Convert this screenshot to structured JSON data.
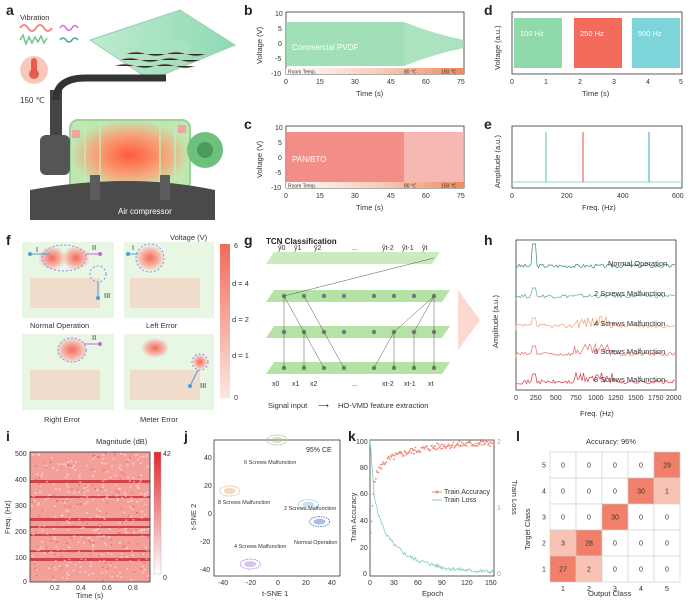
{
  "panels": {
    "a": "a",
    "b": "b",
    "c": "c",
    "d": "d",
    "e": "e",
    "f": "f",
    "g": "g",
    "h": "h",
    "i": "i",
    "j": "j",
    "k": "k",
    "l": "l"
  },
  "panel_a": {
    "vibration": "Vibration",
    "temp": "150 ℃",
    "compressor": "Air compressor"
  },
  "panel_b": {
    "ylabel": "Voltage (V)",
    "xlabel": "Time (s)",
    "series": "Commercial PVDF",
    "xticks": [
      "0",
      "15",
      "30",
      "45",
      "60",
      "75"
    ],
    "yticks": [
      "10",
      "5",
      "0",
      "-5",
      "-10"
    ],
    "bar": [
      "Room Temp.",
      "80 ℃",
      "150 ℃"
    ]
  },
  "panel_c": {
    "ylabel": "Voltage (V)",
    "xlabel": "Time (s)",
    "series": "PAN/BTO",
    "xticks": [
      "0",
      "15",
      "30",
      "45",
      "60",
      "75"
    ],
    "yticks": [
      "10",
      "5",
      "0",
      "-5",
      "-10"
    ],
    "bar": [
      "Room Temp.",
      "80 ℃",
      "150 ℃"
    ]
  },
  "panel_d": {
    "ylabel": "Voltage (a.u.)",
    "xlabel": "Time (s)",
    "blocks": [
      "100 Hz",
      "250 Hz",
      "500 Hz"
    ],
    "colors": [
      "#8fd9ab",
      "#f26b5b",
      "#7dd5da"
    ],
    "xticks": [
      "0",
      "1",
      "2",
      "3",
      "4",
      "5"
    ]
  },
  "panel_e": {
    "ylabel": "Amplitude (a.u.)",
    "xlabel": "Freq. (Hz)",
    "xticks": [
      "0",
      "200",
      "400",
      "600"
    ]
  },
  "panel_f": {
    "legend_title": "Voltage (V)",
    "max": "6",
    "min": "0",
    "captions": [
      "Normal Operation",
      "Left Error",
      "Right Error",
      "Meter Error"
    ],
    "markers": [
      "I",
      "II",
      "III"
    ]
  },
  "panel_g": {
    "title": "TCN Classification",
    "levels": [
      "d = 4",
      "d = 2",
      "d = 1"
    ],
    "outputs": [
      "ŷ0",
      "ŷ1",
      "ŷ2",
      "...",
      "ŷt-2",
      "ŷt-1",
      "ŷt"
    ],
    "inputs": [
      "x0",
      "x1",
      "x2",
      "...",
      "xt-2",
      "xt-1",
      "xt"
    ],
    "caption_left": "Signal input",
    "caption_right": "HO-VMD feature extraction"
  },
  "panel_h": {
    "ylabel": "Amplitude (a.u.)",
    "xlabel": "Freq. (Hz)",
    "xticks": [
      "0",
      "250",
      "500",
      "750",
      "1000",
      "1250",
      "1500",
      "1750",
      "2000"
    ],
    "series": [
      "Normal Operation",
      "2 Screws Malfunction",
      "4 Screws Malfunction",
      "6 Screws Malfunction",
      "8 Screws Malfunction"
    ],
    "colors": [
      "#3e8a5c",
      "#5cb07a",
      "#f2a07e",
      "#ea6f6f",
      "#d43c4c"
    ]
  },
  "panel_i": {
    "ylabel": "Freq. (Hz)",
    "xlabel": "Time (s)",
    "legend": "Magnitude (dB)",
    "max": "42",
    "min": "0",
    "xticks": [
      "0.2",
      "0.4",
      "0.6",
      "0.8"
    ],
    "yticks": [
      "500",
      "400",
      "300",
      "200",
      "100",
      "0"
    ]
  },
  "panel_j": {
    "ylabel": "t-SNE 2",
    "xlabel": "t-SNE 1",
    "ce": "95% CE",
    "xticks": [
      "-40",
      "-20",
      "0",
      "20",
      "40"
    ],
    "yticks": [
      "40",
      "20",
      "0",
      "-20",
      "-40"
    ],
    "clusters": [
      "6 Screws Malfunction",
      "8 Screws Malfunction",
      "2 Screws Malfunction",
      "Normal Operation",
      "4 Screws Malfunction"
    ]
  },
  "panel_k": {
    "ylabel": "Train Accuracy",
    "y2label": "Train Loss",
    "xlabel": "Epoch",
    "xticks": [
      "0",
      "30",
      "60",
      "90",
      "120",
      "150"
    ],
    "yticks": [
      "100",
      "80",
      "60",
      "40",
      "20",
      "0"
    ],
    "y2ticks": [
      "2",
      "1",
      "0"
    ],
    "legend": [
      "Train Accuracy",
      "Train Loss"
    ]
  },
  "panel_l": {
    "title": "Accuracy: 96%",
    "ylabel": "Target Class",
    "xlabel": "Output Class",
    "labels": [
      "1",
      "2",
      "3",
      "4",
      "5"
    ]
  },
  "chart_data": [
    {
      "type": "heatmap",
      "title": "Accuracy: 96%",
      "xlabel": "Output Class",
      "ylabel": "Target Class",
      "rows": [
        "5",
        "4",
        "3",
        "2",
        "1"
      ],
      "cols": [
        "1",
        "2",
        "3",
        "4",
        "5"
      ],
      "values": [
        [
          0,
          0,
          0,
          0,
          29
        ],
        [
          0,
          0,
          0,
          30,
          1
        ],
        [
          0,
          0,
          30,
          0,
          0
        ],
        [
          3,
          28,
          0,
          0,
          0
        ],
        [
          27,
          2,
          0,
          0,
          0
        ]
      ]
    },
    {
      "type": "line",
      "xlabel": "Epoch",
      "ylabel": "Train Accuracy",
      "y2label": "Train Loss",
      "xlim": [
        0,
        150
      ],
      "ylim": [
        0,
        100
      ],
      "y2lim": [
        0,
        2
      ],
      "series": [
        {
          "name": "Train Accuracy",
          "x": [
            0,
            5,
            10,
            20,
            30,
            45,
            60,
            90,
            120,
            150
          ],
          "values": [
            20,
            70,
            78,
            85,
            88,
            91,
            93,
            96,
            97,
            98
          ]
        },
        {
          "name": "Train Loss",
          "x": [
            0,
            5,
            10,
            20,
            30,
            45,
            60,
            90,
            120,
            150
          ],
          "values": [
            2.0,
            1.2,
            0.9,
            0.6,
            0.45,
            0.3,
            0.22,
            0.12,
            0.08,
            0.06
          ]
        }
      ]
    },
    {
      "type": "scatter",
      "xlabel": "t-SNE 1",
      "ylabel": "t-SNE 2",
      "xlim": [
        -40,
        40
      ],
      "ylim": [
        -40,
        40
      ],
      "series": [
        {
          "name": "6 Screws Malfunction",
          "x": [
            0
          ],
          "values": [
            40
          ]
        },
        {
          "name": "8 Screws Malfunction",
          "x": [
            -30
          ],
          "values": [
            10
          ]
        },
        {
          "name": "2 Screws Malfunction",
          "x": [
            20
          ],
          "values": [
            2
          ]
        },
        {
          "name": "Normal Operation",
          "x": [
            27
          ],
          "values": [
            -8
          ]
        },
        {
          "name": "4 Screws Malfunction",
          "x": [
            -17
          ],
          "values": [
            -33
          ]
        }
      ]
    }
  ]
}
